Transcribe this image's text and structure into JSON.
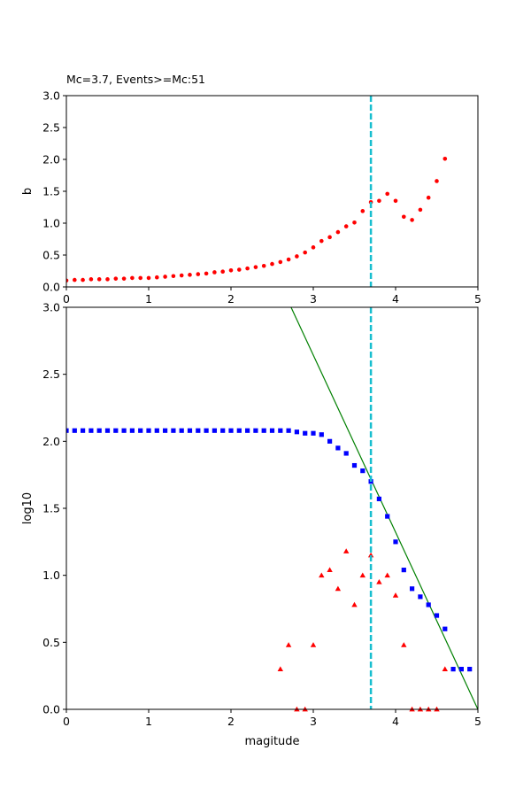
{
  "chart_data": [
    {
      "type": "scatter",
      "title": "Mc=3.7, Events>=Mc:51",
      "xlabel": "",
      "ylabel": "b",
      "xlim": [
        0,
        5
      ],
      "ylim": [
        0,
        3
      ],
      "xticks": [
        "0",
        "1",
        "2",
        "3",
        "4",
        "5"
      ],
      "yticks": [
        "0.0",
        "0.5",
        "1.0",
        "1.5",
        "2.0",
        "2.5",
        "3.0"
      ],
      "grid": false,
      "vline": {
        "x": 3.7,
        "color": "#17becf",
        "style": "dashed"
      },
      "series": [
        {
          "marker": "circle",
          "color": "#ff0000",
          "x": [
            0.0,
            0.1,
            0.2,
            0.3,
            0.4,
            0.5,
            0.6,
            0.7,
            0.8,
            0.9,
            1.0,
            1.1,
            1.2,
            1.3,
            1.4,
            1.5,
            1.6,
            1.7,
            1.8,
            1.9,
            2.0,
            2.1,
            2.2,
            2.3,
            2.4,
            2.5,
            2.6,
            2.7,
            2.8,
            2.9,
            3.0,
            3.1,
            3.2,
            3.3,
            3.4,
            3.5,
            3.6,
            3.7,
            3.8,
            3.9,
            4.0,
            4.1,
            4.2,
            4.3,
            4.4,
            4.5,
            4.6
          ],
          "y": [
            0.1,
            0.11,
            0.11,
            0.12,
            0.12,
            0.12,
            0.13,
            0.13,
            0.14,
            0.14,
            0.14,
            0.15,
            0.16,
            0.17,
            0.18,
            0.19,
            0.2,
            0.21,
            0.23,
            0.24,
            0.26,
            0.27,
            0.29,
            0.31,
            0.33,
            0.36,
            0.39,
            0.43,
            0.48,
            0.54,
            0.62,
            0.72,
            0.78,
            0.86,
            0.95,
            1.01,
            1.19,
            1.33,
            1.35,
            1.46,
            1.35,
            1.1,
            1.05,
            1.21,
            1.4,
            1.66,
            2.01
          ]
        }
      ]
    },
    {
      "type": "scatter",
      "title": "",
      "xlabel": "magitude",
      "ylabel": "log10",
      "xlim": [
        0,
        5
      ],
      "ylim": [
        0,
        3
      ],
      "xticks": [
        "0",
        "1",
        "2",
        "3",
        "4",
        "5"
      ],
      "yticks": [
        "0.0",
        "0.5",
        "1.0",
        "1.5",
        "2.0",
        "2.5",
        "3.0"
      ],
      "grid": false,
      "vline": {
        "x": 3.7,
        "color": "#17becf",
        "style": "dashed"
      },
      "fit_line": {
        "x": [
          2.73,
          5.0
        ],
        "y": [
          3.0,
          0.0
        ],
        "color": "#008000"
      },
      "series": [
        {
          "marker": "square",
          "color": "#0000ff",
          "x": [
            0.0,
            0.1,
            0.2,
            0.3,
            0.4,
            0.5,
            0.6,
            0.7,
            0.8,
            0.9,
            1.0,
            1.1,
            1.2,
            1.3,
            1.4,
            1.5,
            1.6,
            1.7,
            1.8,
            1.9,
            2.0,
            2.1,
            2.2,
            2.3,
            2.4,
            2.5,
            2.6,
            2.7,
            2.8,
            2.9,
            3.0,
            3.1,
            3.2,
            3.3,
            3.4,
            3.5,
            3.6,
            3.7,
            3.8,
            3.9,
            4.0,
            4.1,
            4.2,
            4.3,
            4.4,
            4.5,
            4.6,
            4.7,
            4.8,
            4.9
          ],
          "y": [
            2.08,
            2.08,
            2.08,
            2.08,
            2.08,
            2.08,
            2.08,
            2.08,
            2.08,
            2.08,
            2.08,
            2.08,
            2.08,
            2.08,
            2.08,
            2.08,
            2.08,
            2.08,
            2.08,
            2.08,
            2.08,
            2.08,
            2.08,
            2.08,
            2.08,
            2.08,
            2.08,
            2.08,
            2.07,
            2.06,
            2.06,
            2.05,
            2.0,
            1.95,
            1.91,
            1.82,
            1.78,
            1.7,
            1.57,
            1.44,
            1.25,
            1.04,
            0.9,
            0.84,
            0.78,
            0.7,
            0.6,
            0.3,
            0.3,
            0.3
          ]
        },
        {
          "marker": "triangle",
          "color": "#ff0000",
          "x": [
            2.6,
            2.7,
            2.8,
            2.9,
            3.0,
            3.1,
            3.2,
            3.3,
            3.4,
            3.5,
            3.6,
            3.7,
            3.8,
            3.9,
            4.0,
            4.1,
            4.2,
            4.3,
            4.4,
            4.5,
            4.6
          ],
          "y": [
            0.3,
            0.48,
            0.0,
            0.0,
            0.48,
            1.0,
            1.04,
            0.9,
            1.18,
            0.78,
            1.0,
            1.15,
            0.95,
            1.0,
            0.85,
            0.48,
            0.0,
            0.0,
            0.0,
            0.0,
            0.3
          ]
        }
      ]
    }
  ]
}
